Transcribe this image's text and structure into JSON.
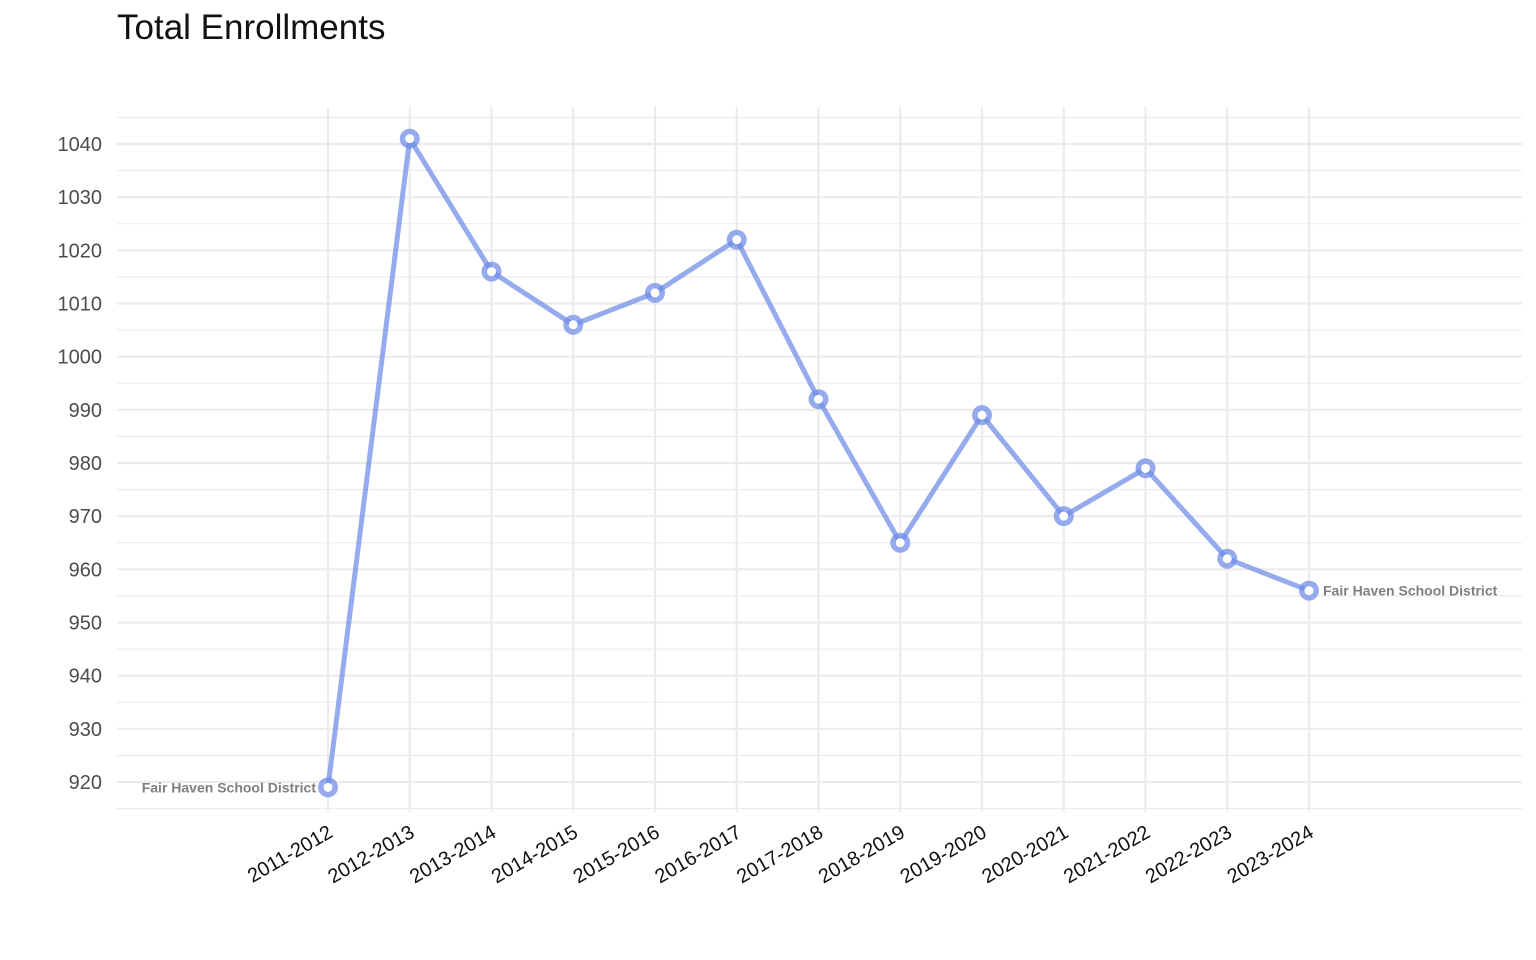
{
  "chart_data": {
    "type": "line",
    "title": "Total Enrollments",
    "xlabel": "",
    "ylabel": "",
    "categories": [
      "2011-2012",
      "2012-2013",
      "2013-2014",
      "2014-2015",
      "2015-2016",
      "2016-2017",
      "2017-2018",
      "2018-2019",
      "2019-2020",
      "2020-2021",
      "2021-2022",
      "2022-2023",
      "2023-2024"
    ],
    "series": [
      {
        "name": "Fair Haven School District",
        "values": [
          919,
          1041,
          1016,
          1006,
          1012,
          1022,
          992,
          965,
          989,
          970,
          979,
          962,
          956
        ],
        "color": "#6d8ae6"
      }
    ],
    "yticks": [
      920,
      930,
      940,
      950,
      960,
      970,
      980,
      990,
      1000,
      1010,
      1020,
      1030,
      1040
    ],
    "ylim": [
      913,
      1046
    ],
    "grid": true,
    "legend": "none",
    "line_labels": [
      "Fair Haven School District",
      "Fair Haven School District"
    ]
  }
}
